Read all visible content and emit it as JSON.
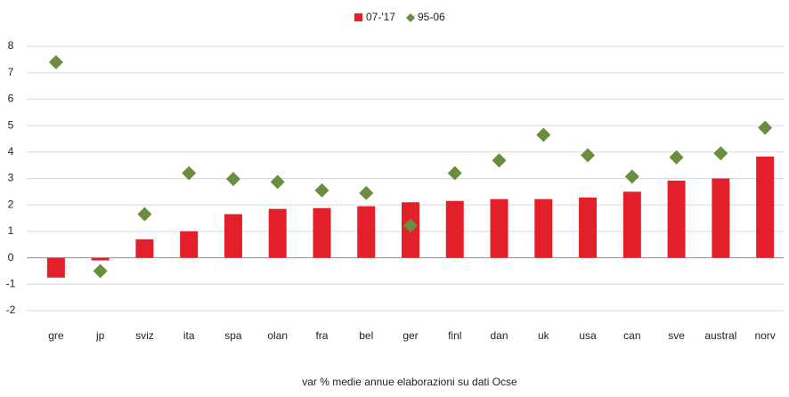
{
  "chart_data": {
    "type": "bar",
    "categories": [
      "gre",
      "jp",
      "sviz",
      "ita",
      "spa",
      "olan",
      "fra",
      "bel",
      "ger",
      "finl",
      "dan",
      "uk",
      "usa",
      "can",
      "sve",
      "austral",
      "norv"
    ],
    "series": [
      {
        "name": "07-'17",
        "color": "#e3202a",
        "values": [
          -0.75,
          -0.1,
          0.7,
          1.0,
          1.65,
          1.85,
          1.88,
          1.95,
          2.1,
          2.15,
          2.22,
          2.22,
          2.28,
          2.5,
          2.92,
          3.0,
          3.83
        ]
      },
      {
        "name": "95-06",
        "color": "#6a8e3e",
        "marker": "diamond",
        "values": [
          7.4,
          -0.5,
          1.65,
          3.2,
          2.98,
          2.87,
          2.55,
          2.45,
          1.22,
          3.2,
          3.68,
          4.65,
          3.88,
          3.07,
          3.8,
          3.95,
          4.92
        ]
      }
    ],
    "ylim": [
      -2,
      8
    ],
    "yticks": [
      -2,
      -1,
      0,
      1,
      2,
      3,
      4,
      5,
      6,
      7,
      8
    ],
    "grid": true,
    "legend": "top",
    "xlabel": "var % medie annue elaborazioni su dati Ocse"
  }
}
